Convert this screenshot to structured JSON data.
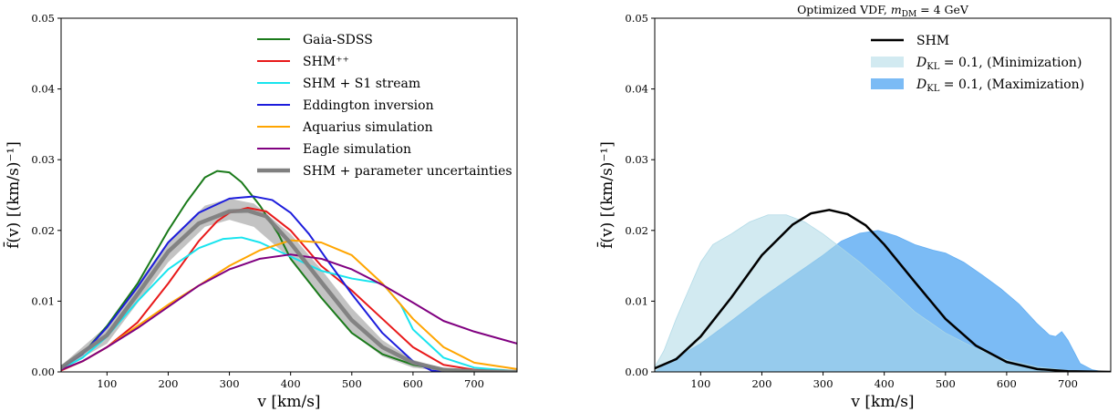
{
  "chart_data": [
    {
      "type": "line",
      "title": "",
      "xlabel": "v [km/s]",
      "ylabel": "f̄(v) [(km/s)⁻¹]",
      "xlim": [
        25,
        770
      ],
      "ylim": [
        0,
        0.05
      ],
      "xticks": [
        100,
        200,
        300,
        400,
        500,
        600,
        700
      ],
      "yticks": [
        0.0,
        0.01,
        0.02,
        0.03,
        0.04,
        0.05
      ],
      "xtick_labels": [
        "100",
        "200",
        "300",
        "400",
        "500",
        "600",
        "700"
      ],
      "ytick_labels": [
        "0.00",
        "0.01",
        "0.02",
        "0.03",
        "0.04",
        "0.05"
      ],
      "legend_position": "upper-right",
      "grid": false,
      "bands": [
        {
          "name": "",
          "color": "#bdbdbd",
          "x": [
            25,
            100,
            200,
            260,
            300,
            340,
            400,
            450,
            500,
            550,
            600,
            650,
            700,
            770
          ],
          "y_low": [
            0.0003,
            0.004,
            0.0155,
            0.0205,
            0.0215,
            0.0205,
            0.016,
            0.0105,
            0.0055,
            0.0022,
            0.0006,
            0.0001,
            0.0,
            0.0
          ],
          "y_high": [
            0.0009,
            0.0065,
            0.0185,
            0.0235,
            0.0245,
            0.0238,
            0.0195,
            0.0145,
            0.009,
            0.0045,
            0.0017,
            0.0005,
            0.0001,
            0.0
          ]
        }
      ],
      "series": [
        {
          "name": "Gaia-SDSS",
          "color": "#1a7a1a",
          "x": [
            25,
            60,
            100,
            150,
            200,
            230,
            260,
            280,
            300,
            320,
            350,
            380,
            400,
            450,
            500,
            550,
            600,
            650,
            700,
            770
          ],
          "y": [
            0.0005,
            0.0025,
            0.0065,
            0.0125,
            0.02,
            0.024,
            0.0275,
            0.0284,
            0.0282,
            0.0268,
            0.0235,
            0.0195,
            0.016,
            0.0105,
            0.0055,
            0.0025,
            0.001,
            0.0003,
            0.0001,
            0.0
          ]
        },
        {
          "name": "SHM⁺⁺",
          "color": "#e8191a",
          "x": [
            25,
            60,
            100,
            150,
            200,
            250,
            280,
            300,
            330,
            360,
            400,
            450,
            500,
            550,
            600,
            650,
            700,
            770
          ],
          "y": [
            0.0002,
            0.0015,
            0.0035,
            0.007,
            0.0125,
            0.0185,
            0.0213,
            0.0225,
            0.0232,
            0.0227,
            0.02,
            0.015,
            0.0115,
            0.0075,
            0.0035,
            0.001,
            0.0003,
            0.0001
          ]
        },
        {
          "name": "SHM + S1 stream",
          "color": "#18e4ee",
          "x": [
            25,
            60,
            100,
            150,
            200,
            250,
            290,
            320,
            350,
            400,
            450,
            500,
            550,
            580,
            600,
            650,
            700,
            770
          ],
          "y": [
            0.0004,
            0.002,
            0.005,
            0.01,
            0.0145,
            0.0175,
            0.0188,
            0.019,
            0.0183,
            0.0163,
            0.0143,
            0.0132,
            0.0125,
            0.0095,
            0.006,
            0.002,
            0.0006,
            0.0001
          ]
        },
        {
          "name": "Eddington inversion",
          "color": "#1c1cdc",
          "x": [
            25,
            60,
            100,
            150,
            200,
            250,
            300,
            340,
            370,
            400,
            430,
            460,
            500,
            550,
            600,
            630,
            650
          ],
          "y": [
            0.0005,
            0.0025,
            0.0063,
            0.012,
            0.0183,
            0.0225,
            0.0245,
            0.0248,
            0.0243,
            0.0225,
            0.0195,
            0.0158,
            0.011,
            0.0055,
            0.0015,
            0.0002,
            0.0
          ]
        },
        {
          "name": "Aquarius simulation",
          "color": "#ffa500",
          "x": [
            25,
            60,
            100,
            150,
            200,
            250,
            300,
            350,
            400,
            450,
            500,
            550,
            600,
            650,
            700,
            770
          ],
          "y": [
            0.0003,
            0.0015,
            0.0035,
            0.0065,
            0.0095,
            0.0122,
            0.015,
            0.0172,
            0.0186,
            0.0183,
            0.0165,
            0.0125,
            0.0075,
            0.0035,
            0.0013,
            0.0004
          ]
        },
        {
          "name": "Eagle simulation",
          "color": "#800080",
          "x": [
            25,
            60,
            100,
            150,
            200,
            250,
            300,
            350,
            400,
            450,
            500,
            550,
            600,
            650,
            700,
            770
          ],
          "y": [
            0.0003,
            0.0015,
            0.0035,
            0.0062,
            0.0092,
            0.0122,
            0.0145,
            0.016,
            0.0166,
            0.016,
            0.0145,
            0.0123,
            0.0098,
            0.0072,
            0.0057,
            0.004
          ]
        },
        {
          "name": "SHM + parameter uncertainties",
          "color": "#808080",
          "width": 4.5,
          "x": [
            25,
            100,
            150,
            200,
            250,
            300,
            330,
            360,
            400,
            450,
            500,
            550,
            600,
            650,
            700,
            770
          ],
          "y": [
            0.0006,
            0.0052,
            0.011,
            0.017,
            0.021,
            0.0227,
            0.0228,
            0.022,
            0.0182,
            0.0127,
            0.0073,
            0.0035,
            0.0013,
            0.0003,
            0.0001,
            0.0
          ]
        }
      ]
    },
    {
      "type": "area",
      "title": "Optimized VDF, m_DM = 4 GeV",
      "title_parts": [
        "Optimized VDF, ",
        "m",
        "DM",
        " = 4 GeV"
      ],
      "xlabel": "v [km/s]",
      "ylabel": "f̄(v) [(km/s)⁻¹]",
      "xlim": [
        25,
        770
      ],
      "ylim": [
        0,
        0.05
      ],
      "xticks": [
        100,
        200,
        300,
        400,
        500,
        600,
        700
      ],
      "yticks": [
        0.0,
        0.01,
        0.02,
        0.03,
        0.04,
        0.05
      ],
      "xtick_labels": [
        "100",
        "200",
        "300",
        "400",
        "500",
        "600",
        "700"
      ],
      "ytick_labels": [
        "0.00",
        "0.01",
        "0.02",
        "0.03",
        "0.04",
        "0.05"
      ],
      "legend_position": "upper-right",
      "grid": false,
      "series": [
        {
          "name": "D_KL = 0.1, (Maximization)",
          "label_parts": [
            "D",
            "KL",
            " = 0.1, (Maximization)"
          ],
          "kind": "area",
          "color": "#5aaaf2",
          "opacity": 0.8,
          "x": [
            25,
            50,
            100,
            150,
            200,
            250,
            300,
            330,
            360,
            390,
            420,
            450,
            480,
            500,
            530,
            560,
            590,
            620,
            650,
            670,
            680,
            690,
            700,
            720,
            740,
            760,
            770
          ],
          "y": [
            0.0,
            0.0015,
            0.004,
            0.0072,
            0.0105,
            0.0135,
            0.0165,
            0.0185,
            0.0196,
            0.02,
            0.0192,
            0.018,
            0.0172,
            0.0168,
            0.0155,
            0.0137,
            0.0118,
            0.0096,
            0.0068,
            0.0052,
            0.005,
            0.0057,
            0.0045,
            0.0012,
            0.0003,
            0.0,
            0.0
          ]
        },
        {
          "name": "D_KL = 0.1, (Minimization)",
          "label_parts": [
            "D",
            "KL",
            " = 0.1, (Minimization)"
          ],
          "kind": "area",
          "color": "#add8e6",
          "opacity": 0.55,
          "x": [
            25,
            40,
            60,
            80,
            100,
            120,
            150,
            180,
            210,
            240,
            270,
            300,
            330,
            360,
            400,
            450,
            500,
            550,
            600,
            650,
            700,
            770
          ],
          "y": [
            0.0007,
            0.003,
            0.0075,
            0.0115,
            0.0155,
            0.018,
            0.0195,
            0.0212,
            0.0222,
            0.0222,
            0.0212,
            0.0195,
            0.0175,
            0.0155,
            0.0125,
            0.0085,
            0.0055,
            0.0033,
            0.0017,
            0.0007,
            0.0002,
            0.0
          ]
        },
        {
          "name": "SHM",
          "kind": "line",
          "color": "#000000",
          "width": 2.5,
          "x": [
            25,
            60,
            100,
            150,
            200,
            250,
            280,
            310,
            340,
            370,
            400,
            450,
            500,
            550,
            600,
            650,
            700,
            770
          ],
          "y": [
            0.0005,
            0.0018,
            0.005,
            0.0105,
            0.0165,
            0.0208,
            0.0224,
            0.0229,
            0.0223,
            0.0207,
            0.018,
            0.0127,
            0.0075,
            0.0037,
            0.0014,
            0.0004,
            0.0001,
            0.0
          ]
        }
      ]
    }
  ]
}
